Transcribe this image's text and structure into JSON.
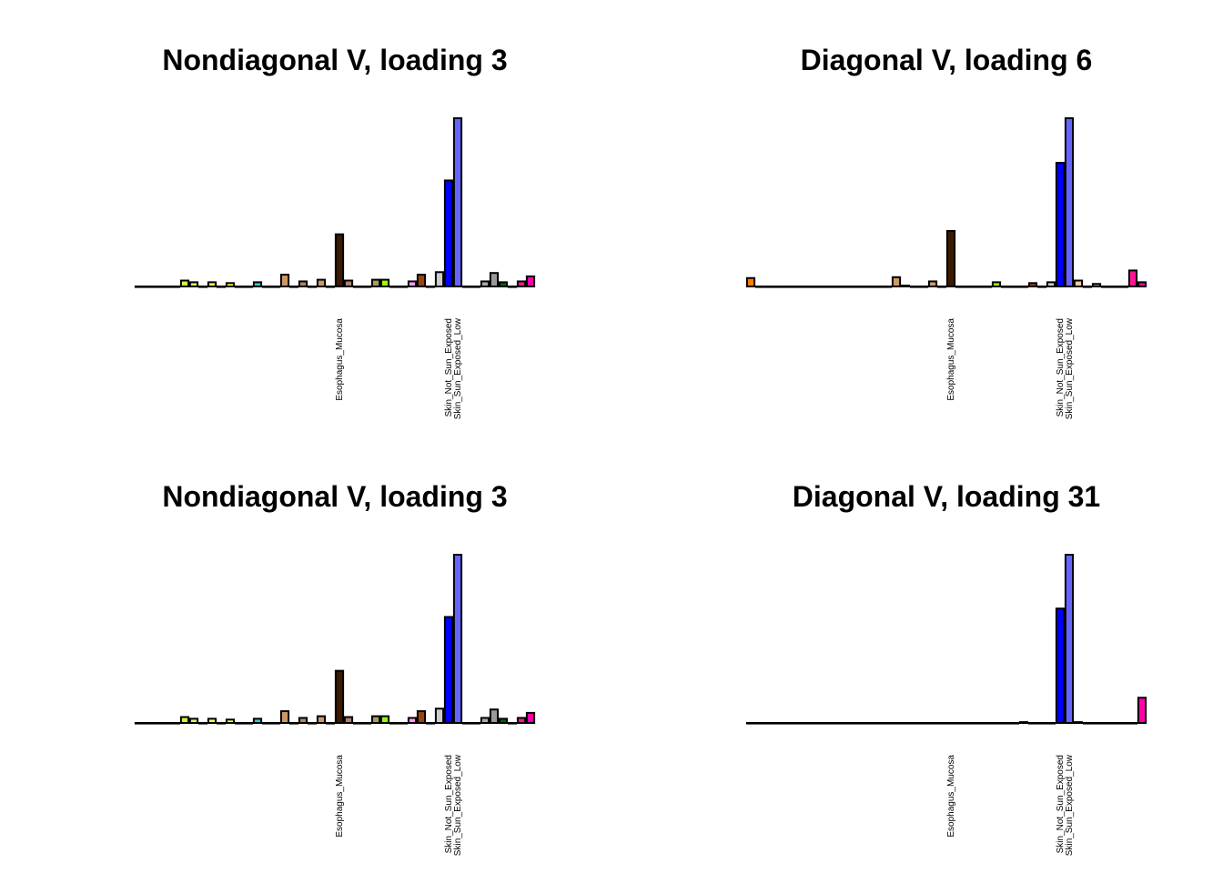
{
  "chart_data": [
    {
      "type": "bar",
      "title": "Nondiagonal V, loading 3",
      "xlabel": "",
      "ylabel": "",
      "grid": false,
      "categories": [
        "",
        "",
        "",
        "",
        "",
        "",
        "",
        "",
        "",
        "",
        "",
        "",
        "",
        "",
        "",
        "",
        "",
        "",
        "",
        "",
        "",
        "",
        "",
        "",
        "",
        "",
        "",
        "",
        "",
        "",
        "",
        "",
        "",
        "",
        "",
        "",
        "",
        "",
        "",
        "",
        "",
        "",
        "",
        ""
      ],
      "tick_labels": [
        {
          "index": 22,
          "text": "Esophagus_Mucosa"
        },
        {
          "index": 34,
          "text": "Skin_Not_Sun_Exposed"
        },
        {
          "index": 35,
          "text": "Skin_Sun_Exposed_Low"
        }
      ],
      "colors": [
        "#FF6600",
        "#ffaa00",
        "#33cc33",
        "#ff0000",
        "#ffcc33",
        "#c4ff00",
        "#eeee00",
        "#eeee33",
        "#ffff00",
        "#ffff33",
        "#ffff66",
        "#ffd700",
        "#ffdd33",
        "#33cccc",
        "#99ccff",
        "#aaaaaa",
        "#cc9966",
        "#442200",
        "#aa8866",
        "#bbbbbb",
        "#aaaa88",
        "#a6d96a",
        "#99ff00",
        "#ffccff",
        "#ff99ff",
        "#994400",
        "#cc66cc",
        "#dddddd",
        "#0000ff",
        "#6666ff",
        "#ffcc99",
        "#ffbbaa",
        "#ff8866",
        "#aaaaaa",
        "#006600",
        "#996699",
        "#ff3399",
        "#ff00bb",
        "#cc3333",
        "#ff66ff",
        "#ff0077",
        "#dd00aa",
        "#ff33cc",
        "#ff0099"
      ],
      "highlight_colors": {
        "11": "#33cccc",
        "22": "#441a00",
        "34": "#0000ee",
        "35": "#6666ff"
      },
      "values": [
        0,
        0,
        0,
        0,
        0,
        0.035,
        0.025,
        0,
        0.025,
        0,
        0.02,
        0,
        0,
        0.025,
        0,
        0,
        0.07,
        0,
        0.03,
        0,
        0.04,
        0,
        0.31,
        0.035,
        0,
        0,
        0.04,
        0.04,
        0,
        0,
        0.03,
        0.07,
        0,
        0.085,
        0.63,
        1.0,
        0,
        0,
        0.03,
        0.08,
        0.025,
        0,
        0.03,
        0.06
      ],
      "ylim": [
        0,
        1.0
      ]
    },
    {
      "type": "bar",
      "title": "Diagonal V, loading 6",
      "xlabel": "",
      "ylabel": "",
      "grid": false,
      "tick_labels": [
        {
          "index": 22,
          "text": "Esophagus_Mucosa"
        },
        {
          "index": 34,
          "text": "Skin_Not_Sun_Exposed"
        },
        {
          "index": 35,
          "text": "Skin_Sun_Exposed_Low"
        }
      ],
      "values": [
        0.05,
        0,
        0,
        0,
        0,
        0,
        0,
        0,
        0,
        0,
        0,
        0,
        0,
        0,
        0,
        0,
        0.055,
        0.005,
        0,
        0,
        0.03,
        0,
        0.33,
        0,
        0,
        0,
        0,
        0.025,
        0,
        0,
        0,
        0.02,
        0,
        0.025,
        0.735,
        1.0,
        0.035,
        0,
        0.015,
        0,
        0,
        0,
        0.095,
        0.025
      ],
      "ylim": [
        0,
        1.0
      ]
    },
    {
      "type": "bar",
      "title": "Nondiagonal V, loading 3",
      "xlabel": "",
      "ylabel": "",
      "grid": false,
      "tick_labels": [
        {
          "index": 22,
          "text": "Esophagus_Mucosa"
        },
        {
          "index": 34,
          "text": "Skin_Not_Sun_Exposed"
        },
        {
          "index": 35,
          "text": "Skin_Sun_Exposed_Low"
        }
      ],
      "values": [
        0,
        0,
        0,
        0,
        0,
        0.035,
        0.025,
        0,
        0.025,
        0,
        0.02,
        0,
        0,
        0.025,
        0,
        0,
        0.07,
        0,
        0.03,
        0,
        0.04,
        0,
        0.31,
        0.035,
        0,
        0,
        0.04,
        0.04,
        0,
        0,
        0.03,
        0.07,
        0,
        0.085,
        0.63,
        1.0,
        0,
        0,
        0.03,
        0.08,
        0.025,
        0,
        0.03,
        0.06
      ],
      "ylim": [
        0,
        1.0
      ]
    },
    {
      "type": "bar",
      "title": "Diagonal V, loading 31",
      "xlabel": "",
      "ylabel": "",
      "grid": false,
      "tick_labels": [
        {
          "index": 22,
          "text": "Esophagus_Mucosa"
        },
        {
          "index": 34,
          "text": "Skin_Not_Sun_Exposed"
        },
        {
          "index": 35,
          "text": "Skin_Sun_Exposed_Low"
        }
      ],
      "values": [
        0,
        0,
        0,
        0,
        0,
        0,
        0,
        0,
        0,
        0,
        0,
        0,
        0,
        0,
        0,
        0,
        0,
        0,
        0,
        0,
        0,
        0,
        0,
        0,
        0,
        0,
        0,
        0,
        0,
        0,
        0.005,
        0,
        0,
        0,
        0.68,
        1.0,
        0.005,
        0,
        0,
        0,
        0,
        0,
        0,
        0.15
      ],
      "ylim": [
        0,
        1.0
      ]
    }
  ],
  "bar_colors": [
    "#ff7f00",
    "#ffaa55",
    "#33dd66",
    "#ff0000",
    "#ffdd44",
    "#c8ff33",
    "#eeee55",
    "#dddd44",
    "#ffff55",
    "#eeee66",
    "#ffff44",
    "#ffd23f",
    "#ffdd66",
    "#33cccc",
    "#99ddee",
    "#999999",
    "#cc9966",
    "#666633",
    "#aa8866",
    "#bbbbbb",
    "#cc9966",
    "#88aa66",
    "#3b1a00",
    "#b08070",
    "#bbbb99",
    "#bbbbbb",
    "#a0a060",
    "#99ff00",
    "#ffccff",
    "#ee88ee",
    "#ff99ff",
    "#994411",
    "#8b4513",
    "#cccccc",
    "#0000ff",
    "#6666ff",
    "#ffcc99",
    "#ffbbbb",
    "#aaaaaa",
    "#999999",
    "#006600",
    "#ff3399",
    "#ff1493",
    "#ff00aa"
  ]
}
